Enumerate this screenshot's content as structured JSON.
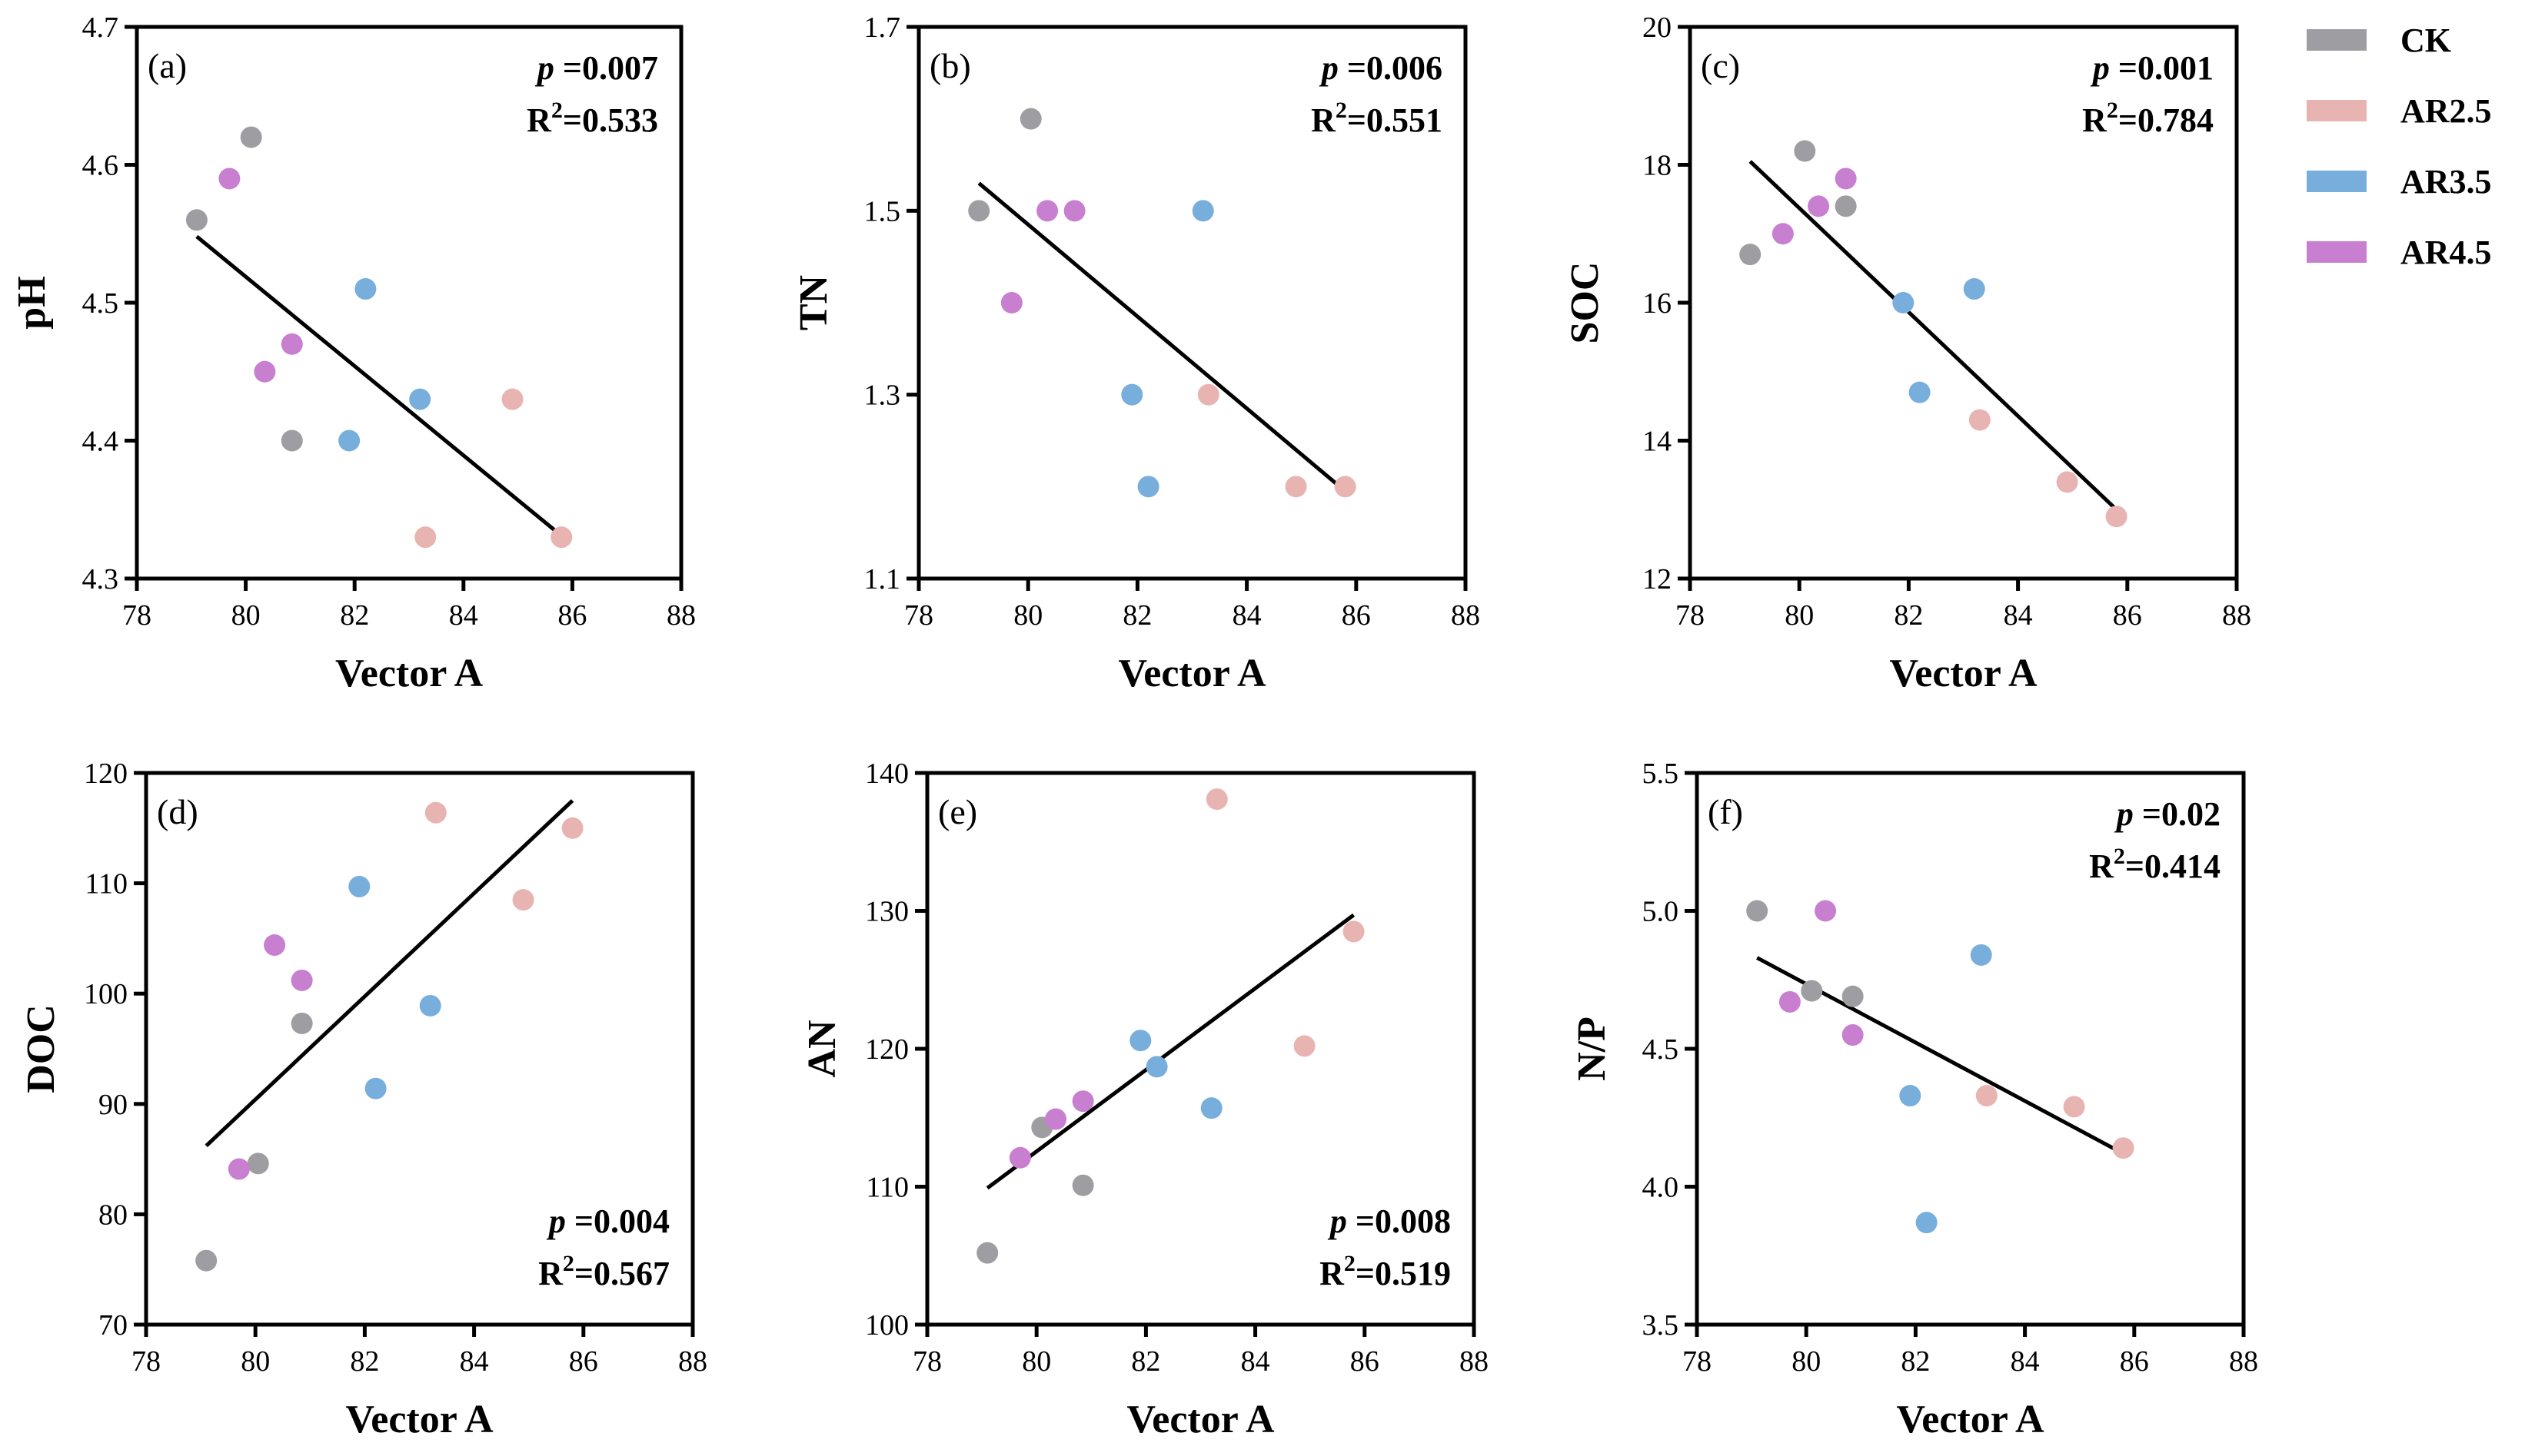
{
  "legend": [
    {
      "label": "CK",
      "color": "#9e9ea2"
    },
    {
      "label": "AR2.5",
      "color": "#e8b4b2"
    },
    {
      "label": "AR3.5",
      "color": "#78aedc"
    },
    {
      "label": "AR4.5",
      "color": "#c87fd0"
    }
  ],
  "chart_data": [
    {
      "type": "scatter",
      "panel": "(a)",
      "xlabel": "Vector A",
      "ylabel": "pH",
      "xlim": [
        78,
        88
      ],
      "xticks": [
        78,
        80,
        82,
        84,
        86,
        88
      ],
      "ylim": [
        4.3,
        4.7
      ],
      "yticks": [
        "4.3",
        "4.4",
        "4.5",
        "4.6",
        "4.7"
      ],
      "p_label": "p",
      "p_value": "=0.007",
      "r2_label": "R",
      "r2_sup": "2",
      "r2_value": "=0.533",
      "stats_position": "top-right",
      "fit": {
        "x": [
          79.1,
          85.8
        ],
        "y": [
          4.548,
          4.331
        ]
      },
      "series": [
        {
          "name": "CK",
          "points": [
            [
              79.1,
              4.56
            ],
            [
              80.1,
              4.62
            ],
            [
              80.85,
              4.4
            ]
          ]
        },
        {
          "name": "AR2.5",
          "points": [
            [
              83.3,
              4.33
            ],
            [
              84.9,
              4.43
            ],
            [
              85.8,
              4.33
            ]
          ]
        },
        {
          "name": "AR3.5",
          "points": [
            [
              81.9,
              4.4
            ],
            [
              82.2,
              4.51
            ],
            [
              83.2,
              4.43
            ]
          ]
        },
        {
          "name": "AR4.5",
          "points": [
            [
              79.7,
              4.59
            ],
            [
              80.35,
              4.45
            ],
            [
              80.85,
              4.47
            ]
          ]
        }
      ]
    },
    {
      "type": "scatter",
      "panel": "(b)",
      "xlabel": "Vector A",
      "ylabel": "TN",
      "xlim": [
        78,
        88
      ],
      "xticks": [
        78,
        80,
        82,
        84,
        86,
        88
      ],
      "ylim": [
        1.1,
        1.7
      ],
      "yticks": [
        "1.1",
        "1.3",
        "1.5",
        "1.7"
      ],
      "p_label": "p",
      "p_value": "=0.006",
      "r2_label": "R",
      "r2_sup": "2",
      "r2_value": "=0.551",
      "stats_position": "top-right",
      "fit": {
        "x": [
          79.1,
          85.7
        ],
        "y": [
          1.53,
          1.2
        ]
      },
      "series": [
        {
          "name": "CK",
          "points": [
            [
              79.1,
              1.5
            ],
            [
              80.05,
              1.6
            ]
          ]
        },
        {
          "name": "AR2.5",
          "points": [
            [
              83.3,
              1.3
            ],
            [
              84.9,
              1.2
            ],
            [
              85.8,
              1.2
            ]
          ]
        },
        {
          "name": "AR3.5",
          "points": [
            [
              81.9,
              1.3
            ],
            [
              82.2,
              1.2
            ],
            [
              83.2,
              1.5
            ]
          ]
        },
        {
          "name": "AR4.5",
          "points": [
            [
              79.7,
              1.4
            ],
            [
              80.35,
              1.5
            ],
            [
              80.85,
              1.5
            ]
          ]
        }
      ]
    },
    {
      "type": "scatter",
      "panel": "(c)",
      "xlabel": "Vector A",
      "ylabel": "SOC",
      "xlim": [
        78,
        88
      ],
      "xticks": [
        78,
        80,
        82,
        84,
        86,
        88
      ],
      "ylim": [
        12,
        20
      ],
      "yticks": [
        "12",
        "14",
        "16",
        "18",
        "20"
      ],
      "p_label": "p",
      "p_value": "=0.001",
      "r2_label": "R",
      "r2_sup": "2",
      "r2_value": "=0.784",
      "stats_position": "top-right",
      "fit": {
        "x": [
          79.1,
          85.8
        ],
        "y": [
          18.05,
          13.0
        ]
      },
      "series": [
        {
          "name": "CK",
          "points": [
            [
              79.1,
              16.7
            ],
            [
              80.1,
              18.2
            ],
            [
              80.85,
              17.4
            ]
          ]
        },
        {
          "name": "AR2.5",
          "points": [
            [
              83.3,
              14.3
            ],
            [
              84.9,
              13.4
            ],
            [
              85.8,
              12.9
            ]
          ]
        },
        {
          "name": "AR3.5",
          "points": [
            [
              81.9,
              16.0
            ],
            [
              82.2,
              14.7
            ],
            [
              83.2,
              16.2
            ]
          ]
        },
        {
          "name": "AR4.5",
          "points": [
            [
              79.7,
              17.0
            ],
            [
              80.35,
              17.4
            ],
            [
              80.85,
              17.8
            ]
          ]
        }
      ]
    },
    {
      "type": "scatter",
      "panel": "(d)",
      "xlabel": "Vector A",
      "ylabel": "DOC",
      "xlim": [
        78,
        88
      ],
      "xticks": [
        78,
        80,
        82,
        84,
        86,
        88
      ],
      "ylim": [
        70,
        120
      ],
      "yticks": [
        "70",
        "80",
        "90",
        "100",
        "110",
        "120"
      ],
      "p_label": "p",
      "p_value": "=0.004",
      "r2_label": "R",
      "r2_sup": "2",
      "r2_value": "=0.567",
      "stats_position": "bottom-right",
      "fit": {
        "x": [
          79.1,
          85.8
        ],
        "y": [
          86.2,
          117.5
        ]
      },
      "series": [
        {
          "name": "CK",
          "points": [
            [
              79.1,
              75.8
            ],
            [
              80.05,
              84.6
            ],
            [
              80.85,
              97.3
            ]
          ]
        },
        {
          "name": "AR2.5",
          "points": [
            [
              83.3,
              116.4
            ],
            [
              84.9,
              108.5
            ],
            [
              85.8,
              115.0
            ]
          ]
        },
        {
          "name": "AR3.5",
          "points": [
            [
              81.9,
              109.7
            ],
            [
              82.2,
              91.4
            ],
            [
              83.2,
              98.9
            ]
          ]
        },
        {
          "name": "AR4.5",
          "points": [
            [
              79.7,
              84.1
            ],
            [
              80.35,
              104.4
            ],
            [
              80.85,
              101.2
            ]
          ]
        }
      ]
    },
    {
      "type": "scatter",
      "panel": "(e)",
      "xlabel": "Vector A",
      "ylabel": "AN",
      "xlim": [
        78,
        88
      ],
      "xticks": [
        78,
        80,
        82,
        84,
        86,
        88
      ],
      "ylim": [
        100,
        140
      ],
      "yticks": [
        "100",
        "110",
        "120",
        "130",
        "140"
      ],
      "p_label": "p",
      "p_value": "=0.008",
      "r2_label": "R",
      "r2_sup": "2",
      "r2_value": "=0.519",
      "stats_position": "bottom-right",
      "fit": {
        "x": [
          79.1,
          85.8
        ],
        "y": [
          109.9,
          129.7
        ]
      },
      "series": [
        {
          "name": "CK",
          "points": [
            [
              79.1,
              105.2
            ],
            [
              80.1,
              114.3
            ],
            [
              80.85,
              110.1
            ]
          ]
        },
        {
          "name": "AR2.5",
          "points": [
            [
              83.3,
              138.1
            ],
            [
              84.9,
              120.2
            ],
            [
              85.8,
              128.5
            ]
          ]
        },
        {
          "name": "AR3.5",
          "points": [
            [
              81.9,
              120.6
            ],
            [
              82.2,
              118.7
            ],
            [
              83.2,
              115.7
            ]
          ]
        },
        {
          "name": "AR4.5",
          "points": [
            [
              79.7,
              112.1
            ],
            [
              80.35,
              114.9
            ],
            [
              80.85,
              116.2
            ]
          ]
        }
      ]
    },
    {
      "type": "scatter",
      "panel": "(f)",
      "xlabel": "Vector A",
      "ylabel": "N/P",
      "xlim": [
        78,
        88
      ],
      "xticks": [
        78,
        80,
        82,
        84,
        86,
        88
      ],
      "ylim": [
        3.5,
        5.5
      ],
      "yticks": [
        "3.5",
        "4.0",
        "4.5",
        "5.0",
        "5.5"
      ],
      "p_label": "p",
      "p_value": "=0.02",
      "r2_label": "R",
      "r2_sup": "2",
      "r2_value": "=0.414",
      "stats_position": "top-right",
      "fit": {
        "x": [
          79.1,
          85.8
        ],
        "y": [
          4.83,
          4.12
        ]
      },
      "series": [
        {
          "name": "CK",
          "points": [
            [
              79.1,
              5.0
            ],
            [
              80.1,
              4.71
            ],
            [
              80.85,
              4.69
            ]
          ]
        },
        {
          "name": "AR2.5",
          "points": [
            [
              83.3,
              4.33
            ],
            [
              84.9,
              4.29
            ],
            [
              85.8,
              4.14
            ]
          ]
        },
        {
          "name": "AR3.5",
          "points": [
            [
              81.9,
              4.33
            ],
            [
              82.2,
              3.87
            ],
            [
              83.2,
              4.84
            ]
          ]
        },
        {
          "name": "AR4.5",
          "points": [
            [
              79.7,
              4.67
            ],
            [
              80.35,
              5.0
            ],
            [
              80.85,
              4.55
            ]
          ]
        }
      ]
    }
  ]
}
